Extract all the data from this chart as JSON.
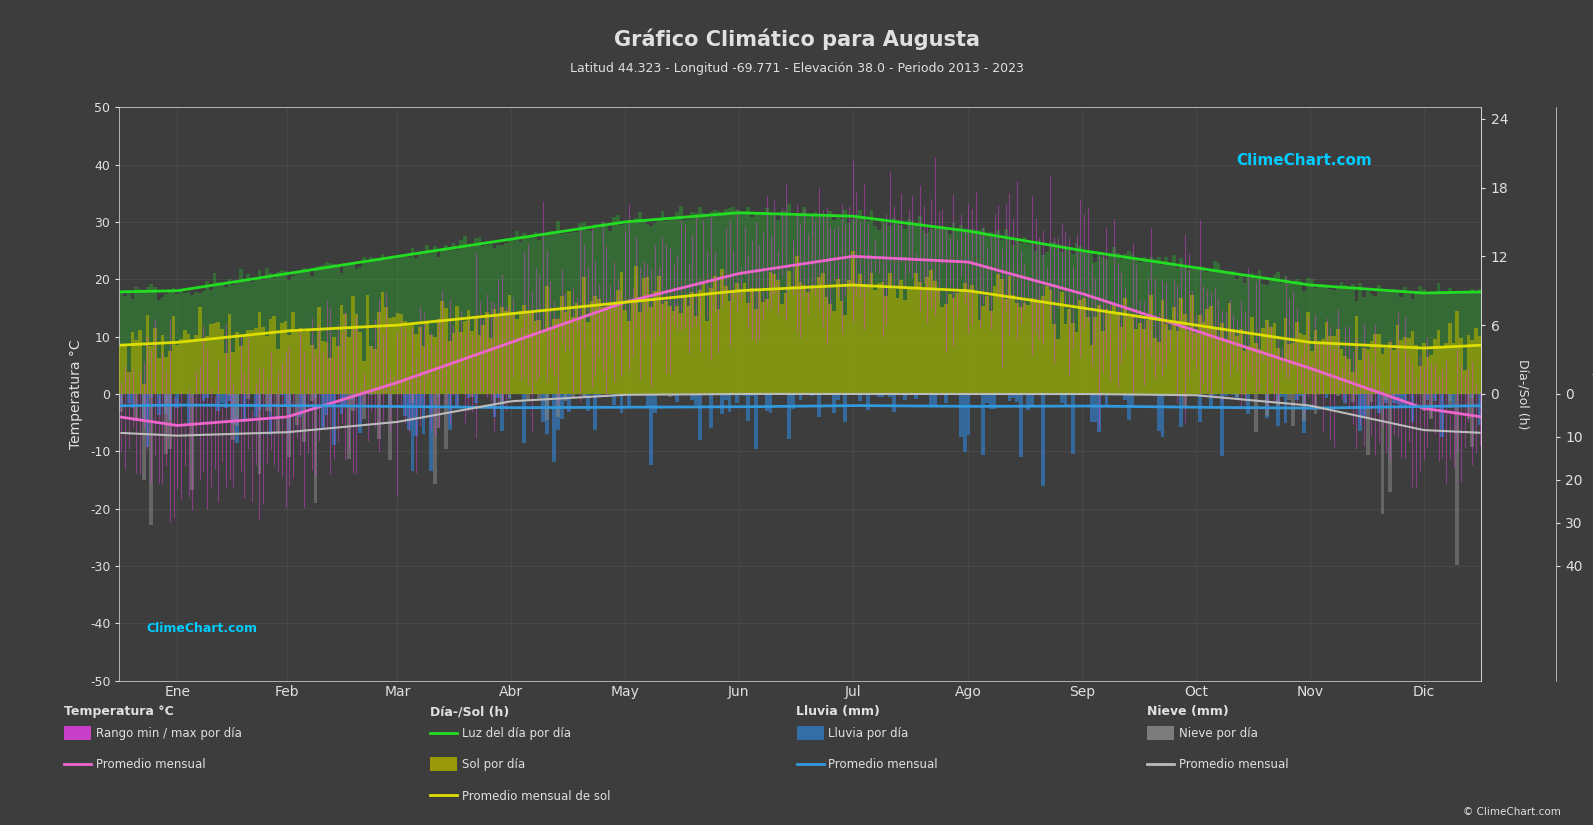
{
  "title": "Gráfico Climático para Augusta",
  "subtitle": "Latitud 44.323 - Longitud -69.771 - Elevación 38.0 - Periodo 2013 - 2023",
  "background_color": "#3d3d3d",
  "plot_bg_color": "#3d3d3d",
  "text_color": "#e0e0e0",
  "months": [
    "Ene",
    "Feb",
    "Mar",
    "Abr",
    "May",
    "Jun",
    "Jul",
    "Ago",
    "Sep",
    "Oct",
    "Nov",
    "Dic"
  ],
  "days_per_month": [
    31,
    28,
    31,
    30,
    31,
    30,
    31,
    31,
    30,
    31,
    30,
    31
  ],
  "temp_ylim": [
    -50,
    50
  ],
  "temp_avg_monthly": [
    -5.5,
    -4.0,
    2.0,
    9.0,
    16.0,
    21.0,
    24.0,
    23.0,
    17.5,
    11.0,
    4.5,
    -2.5
  ],
  "temp_min_monthly": [
    -14.0,
    -13.0,
    -6.0,
    1.0,
    7.5,
    12.5,
    16.5,
    15.5,
    9.5,
    3.0,
    -2.0,
    -10.5
  ],
  "temp_max_monthly": [
    3.0,
    5.0,
    11.0,
    18.0,
    24.5,
    29.5,
    31.5,
    31.0,
    25.5,
    19.0,
    11.0,
    5.0
  ],
  "daylight_monthly": [
    9.0,
    10.5,
    12.0,
    13.5,
    15.0,
    15.8,
    15.5,
    14.2,
    12.5,
    11.0,
    9.5,
    8.8
  ],
  "sunshine_monthly": [
    4.5,
    5.5,
    6.0,
    7.0,
    8.0,
    9.0,
    9.5,
    9.0,
    7.5,
    6.0,
    4.5,
    4.0
  ],
  "rain_avg_daily": [
    2.6,
    2.7,
    2.9,
    3.2,
    3.1,
    3.0,
    2.7,
    2.9,
    2.8,
    3.1,
    3.3,
    2.9
  ],
  "snow_avg_daily": [
    9.7,
    8.9,
    6.5,
    1.7,
    0.2,
    0,
    0,
    0,
    0,
    0.3,
    2.7,
    8.4
  ],
  "daylight_scale": 2.0,
  "rain_scale": 0.75,
  "colors": {
    "magenta": "#e040e0",
    "green_daylight": "#22dd22",
    "yellow_sunshine": "#aaaa00",
    "yellow_avg_sun": "#dddd00",
    "pink_avg_temp": "#ee66cc",
    "cyan_avg_rain": "#3399dd",
    "white_avg_snow": "#bbbbbb",
    "rain_blue": "#3377bb",
    "snow_gray": "#888888",
    "grid_color": "#555555"
  },
  "daylight_right_ticks": [
    0,
    6,
    12,
    18,
    24
  ],
  "rain_right_ticks": [
    0,
    10,
    20,
    30,
    40
  ]
}
